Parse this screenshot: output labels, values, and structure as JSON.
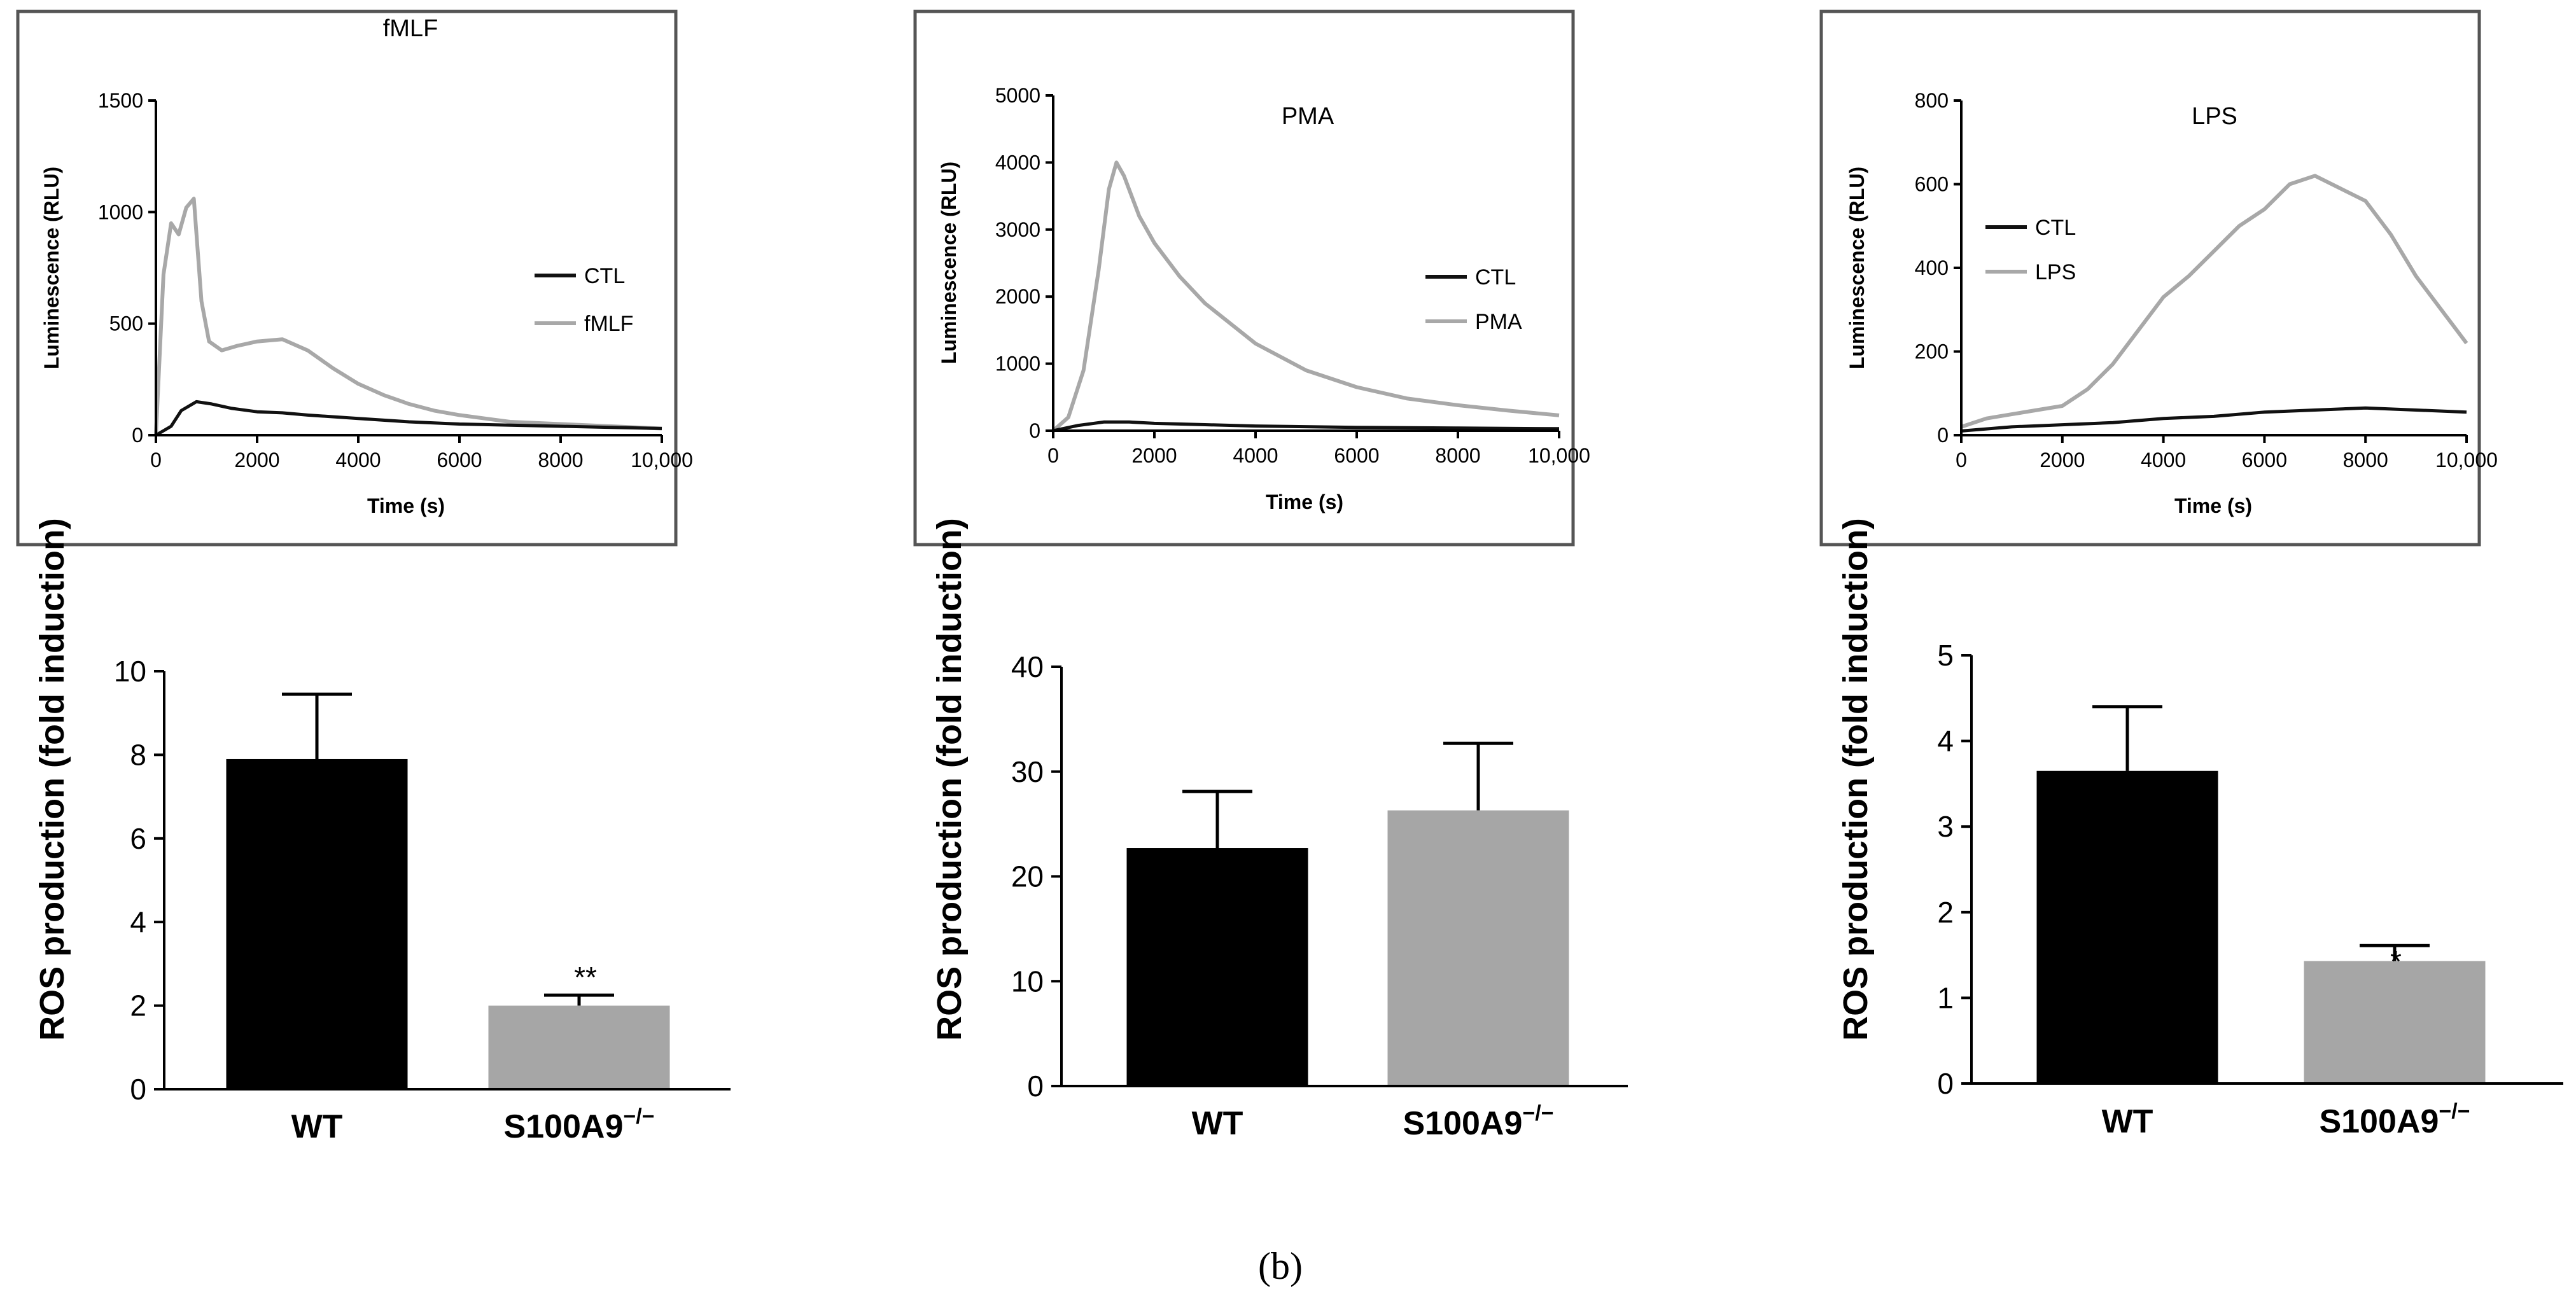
{
  "caption": "(b)",
  "colors": {
    "ctl": "#111111",
    "treated": "#a8a8a8",
    "wt_bar": "#000000",
    "ko_bar": "#a6a6a6",
    "frame": "#555555"
  },
  "chart_data": [
    {
      "type": "line",
      "title": "fMLF",
      "xlabel": "Time (s)",
      "ylabel": "Luminescence (RLU)",
      "xlim": [
        0,
        10000
      ],
      "ylim": [
        0,
        1500
      ],
      "xticks": [
        "0",
        "2000",
        "4000",
        "6000",
        "8000",
        "10,000"
      ],
      "yticks": [
        "0",
        "500",
        "1000",
        "1500"
      ],
      "legend": {
        "position": "right",
        "entries": [
          "CTL",
          "fMLF"
        ]
      },
      "series": [
        {
          "name": "CTL",
          "x": [
            0,
            300,
            500,
            800,
            1100,
            1500,
            2000,
            2500,
            3000,
            4000,
            5000,
            6000,
            7000,
            8000,
            9000,
            10000
          ],
          "y": [
            0,
            40,
            110,
            150,
            140,
            120,
            105,
            100,
            90,
            75,
            60,
            50,
            45,
            40,
            35,
            30
          ]
        },
        {
          "name": "fMLF",
          "x": [
            0,
            150,
            300,
            450,
            600,
            750,
            900,
            1050,
            1300,
            1600,
            2000,
            2500,
            3000,
            3500,
            4000,
            4500,
            5000,
            5500,
            6000,
            7000,
            8000,
            9000,
            10000
          ],
          "y": [
            0,
            720,
            950,
            900,
            1020,
            1060,
            600,
            420,
            380,
            400,
            420,
            430,
            380,
            300,
            230,
            180,
            140,
            110,
            90,
            60,
            50,
            40,
            30
          ]
        }
      ]
    },
    {
      "type": "line",
      "title": "PMA",
      "xlabel": "Time (s)",
      "ylabel": "Luminescence (RLU)",
      "xlim": [
        0,
        10000
      ],
      "ylim": [
        0,
        5000
      ],
      "xticks": [
        "0",
        "2000",
        "4000",
        "6000",
        "8000",
        "10,000"
      ],
      "yticks": [
        "0",
        "1000",
        "2000",
        "3000",
        "4000",
        "5000"
      ],
      "legend": {
        "position": "right",
        "entries": [
          "CTL",
          "PMA"
        ]
      },
      "series": [
        {
          "name": "CTL",
          "x": [
            0,
            500,
            1000,
            1500,
            2000,
            3000,
            4000,
            6000,
            8000,
            10000
          ],
          "y": [
            0,
            80,
            130,
            130,
            110,
            90,
            70,
            50,
            40,
            30
          ]
        },
        {
          "name": "PMA",
          "x": [
            0,
            300,
            600,
            900,
            1100,
            1250,
            1400,
            1700,
            2000,
            2500,
            3000,
            4000,
            5000,
            6000,
            7000,
            8000,
            9000,
            10000
          ],
          "y": [
            0,
            200,
            900,
            2400,
            3600,
            4000,
            3800,
            3200,
            2800,
            2300,
            1900,
            1300,
            900,
            650,
            480,
            380,
            300,
            230
          ]
        }
      ]
    },
    {
      "type": "line",
      "title": "LPS",
      "xlabel": "Time (s)",
      "ylabel": "Luminescence (RLU)",
      "xlim": [
        0,
        10000
      ],
      "ylim": [
        0,
        800
      ],
      "xticks": [
        "0",
        "2000",
        "4000",
        "6000",
        "8000",
        "10,000"
      ],
      "yticks": [
        "0",
        "200",
        "400",
        "600",
        "800"
      ],
      "legend": {
        "position": "top-left",
        "entries": [
          "CTL",
          "LPS"
        ]
      },
      "series": [
        {
          "name": "CTL",
          "x": [
            0,
            1000,
            2000,
            3000,
            4000,
            5000,
            6000,
            7000,
            8000,
            9000,
            10000
          ],
          "y": [
            10,
            20,
            25,
            30,
            40,
            45,
            55,
            60,
            65,
            60,
            55
          ]
        },
        {
          "name": "LPS",
          "x": [
            0,
            500,
            1000,
            1500,
            2000,
            2500,
            3000,
            3500,
            4000,
            4500,
            5000,
            5500,
            6000,
            6500,
            7000,
            7500,
            8000,
            8500,
            9000,
            9500,
            10000
          ],
          "y": [
            20,
            40,
            50,
            60,
            70,
            110,
            170,
            250,
            330,
            380,
            440,
            500,
            540,
            600,
            620,
            590,
            560,
            480,
            380,
            300,
            220
          ]
        }
      ]
    },
    {
      "type": "bar",
      "ylabel": "ROS production (fold induction)",
      "categories": [
        "WT",
        "S100A9"
      ],
      "category_superscripts": [
        "",
        "−/−"
      ],
      "values": [
        7.9,
        2.0
      ],
      "errors": [
        1.55,
        0.25
      ],
      "significance": [
        "",
        "**"
      ],
      "ylim": [
        0,
        10
      ],
      "yticks": [
        "0",
        "2",
        "4",
        "6",
        "8",
        "10"
      ]
    },
    {
      "type": "bar",
      "ylabel": "ROS production (fold induction)",
      "categories": [
        "WT",
        "S100A9"
      ],
      "category_superscripts": [
        "",
        "−/−"
      ],
      "values": [
        22.7,
        26.3
      ],
      "errors": [
        5.4,
        6.4
      ],
      "significance": [
        "",
        ""
      ],
      "ylim": [
        0,
        40
      ],
      "yticks": [
        "0",
        "10",
        "20",
        "30",
        "40"
      ]
    },
    {
      "type": "bar",
      "ylabel": "ROS production (fold induction)",
      "categories": [
        "WT",
        "S100A9"
      ],
      "category_superscripts": [
        "",
        "−/−"
      ],
      "values": [
        3.65,
        1.43
      ],
      "errors": [
        0.75,
        0.18
      ],
      "significance": [
        "",
        "*"
      ],
      "ylim": [
        0,
        5
      ],
      "yticks": [
        "0",
        "1",
        "2",
        "3",
        "4",
        "5"
      ]
    }
  ]
}
